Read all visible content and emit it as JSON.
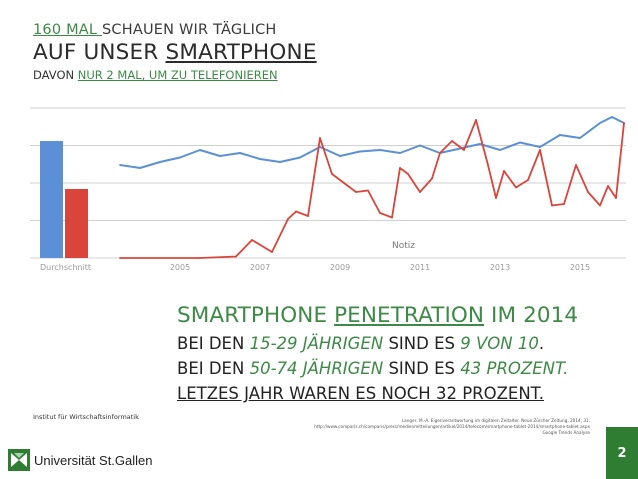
{
  "title": {
    "line1_highlight": "160 MAL ",
    "line1_rest": "SCHAUEN WIR TÄGLICH",
    "line2_pre": "AUF UNSER ",
    "line2_ul": "SMARTPHONE",
    "line3_pre": "DAVON ",
    "line3_highlight": "NUR 2 MAL, UM ZU TELEFONIEREN"
  },
  "chart_data": {
    "type": "line",
    "title": "",
    "xlabel": "",
    "ylabel": "",
    "x_ticks": [
      "2005",
      "2007",
      "2009",
      "2011",
      "2013",
      "2015"
    ],
    "average_label": "Durchschnitt",
    "note_label": "Notiz",
    "ylim": [
      0,
      100
    ],
    "averages": [
      {
        "name": "blue",
        "value": 78
      },
      {
        "name": "red",
        "value": 46
      }
    ],
    "series": [
      {
        "name": "blue",
        "color": "#5b8fd6",
        "x": [
          2004.0,
          2004.5,
          2005.0,
          2005.5,
          2006.0,
          2006.5,
          2007.0,
          2007.5,
          2008.0,
          2008.5,
          2009.0,
          2009.5,
          2010.0,
          2010.5,
          2011.0,
          2011.5,
          2012.0,
          2012.5,
          2013.0,
          2013.5,
          2014.0,
          2014.5,
          2015.0,
          2015.5,
          2016.0,
          2016.3,
          2016.6
        ],
        "values": [
          62,
          60,
          64,
          67,
          72,
          68,
          70,
          66,
          64,
          67,
          74,
          68,
          71,
          72,
          70,
          75,
          70,
          73,
          76,
          72,
          77,
          74,
          82,
          80,
          90,
          94,
          90
        ]
      },
      {
        "name": "red",
        "color": "#d9453a",
        "x": [
          2004.0,
          2006.0,
          2006.9,
          2007.3,
          2007.8,
          2008.2,
          2008.4,
          2008.7,
          2009.0,
          2009.3,
          2009.6,
          2009.9,
          2010.2,
          2010.5,
          2010.8,
          2011.0,
          2011.2,
          2011.5,
          2011.8,
          2012.0,
          2012.3,
          2012.6,
          2012.9,
          2013.2,
          2013.4,
          2013.6,
          2013.9,
          2014.2,
          2014.5,
          2014.8,
          2015.1,
          2015.4,
          2015.7,
          2016.0,
          2016.2,
          2016.4,
          2016.6
        ],
        "values": [
          0,
          0,
          1,
          12,
          4,
          26,
          31,
          28,
          80,
          56,
          50,
          44,
          45,
          30,
          27,
          60,
          56,
          44,
          53,
          70,
          78,
          72,
          92,
          62,
          40,
          58,
          47,
          52,
          72,
          35,
          36,
          62,
          44,
          35,
          48,
          40,
          90
        ]
      }
    ]
  },
  "headline": {
    "line0_pre": "SMARTPHONE ",
    "line0_ul": "PENETRATION",
    "line0_post": " IM 2014",
    "line1_a": "BEI DEN ",
    "line1_b": "15-29 JÄHRIGEN",
    "line1_c": " SIND ES ",
    "line1_d": "9 VON 10",
    "line1_e": ".",
    "line2_a": "BEI DEN ",
    "line2_b": "50-74 JÄHRIGEN",
    "line2_c": " SIND ES ",
    "line2_d": "43 PROZENT.",
    "line3": "LETZES JAHR WAREN ES NOCH 32 PROZENT."
  },
  "footer": {
    "institute": "Institut für Wirtschaftsinformatik",
    "university": "Universität St.Gallen",
    "source_1": "Langer, M.-A. Eigenverantwortung im digitalen Zeitalter. Neue Zürcher Zeitung, 2014, 31.",
    "source_2": "http://www.comparis.ch/comparis/press/medienmitteilungen/artikel/2014/telecom/smartphone-tablet-2014/smartphone-tablet.aspx",
    "source_3": "Google Trends Analyse",
    "page_number": "2"
  },
  "colors": {
    "green": "#3c8a45",
    "blue": "#5b8fd6",
    "red": "#d9453a",
    "page_box": "#2e7d32"
  }
}
